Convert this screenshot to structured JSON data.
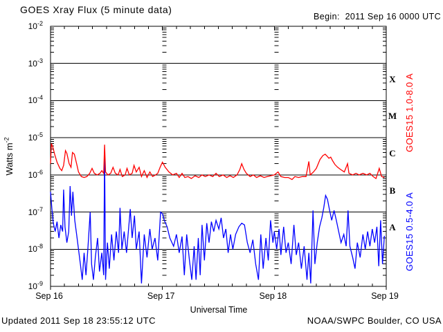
{
  "header": {
    "title": "GOES Xray Flux (5 minute data)",
    "begin_label": "Begin:",
    "begin_value": "2011 Sep 16 0000 UTC"
  },
  "footer": {
    "updated": "Updated 2011 Sep 18 23:55:12 UTC",
    "source": "NOAA/SWPC Boulder, CO USA"
  },
  "chart_data": {
    "type": "line",
    "title": "GOES Xray Flux (5 minute data)",
    "xlabel": "Universal Time",
    "ylabel_base": "Watts m",
    "ylabel_exp": "-2",
    "x_unit_hours_since": "2011 Sep 16 0000 UTC",
    "xlim_hours": [
      0,
      72
    ],
    "ylim": [
      1e-09,
      0.01
    ],
    "y_scale": "log",
    "grid": "horizontal-decade-lines",
    "x_minor_tick_hours": 3,
    "x_major_ticks": [
      {
        "hours": 0,
        "label": "Sep 16"
      },
      {
        "hours": 24,
        "label": "Sep 17"
      },
      {
        "hours": 48,
        "label": "Sep 18"
      },
      {
        "hours": 72,
        "label": "Sep 19"
      }
    ],
    "y_tick_exponents": [
      -2,
      -3,
      -4,
      -5,
      -6,
      -7,
      -8,
      -9
    ],
    "flare_classes": [
      {
        "label": "X",
        "log_center": -3.5
      },
      {
        "label": "M",
        "log_center": -4.5
      },
      {
        "label": "C",
        "log_center": -5.5
      },
      {
        "label": "B",
        "log_center": -6.5
      },
      {
        "label": "A",
        "log_center": -7.5
      }
    ],
    "series": [
      {
        "name": "GOES15 0.5-4.0 A",
        "color": "#0000ff",
        "points": [
          [
            0,
            3.5e-07
          ],
          [
            0.3,
            1.2e-07
          ],
          [
            0.6,
            5e-08
          ],
          [
            1,
            3e-08
          ],
          [
            1.4,
            5.5e-08
          ],
          [
            1.8,
            2e-08
          ],
          [
            2.2,
            4.5e-08
          ],
          [
            2.6,
            3e-08
          ],
          [
            2.8,
            4e-07
          ],
          [
            3.1,
            4e-08
          ],
          [
            3.5,
            1.5e-08
          ],
          [
            3.9,
            3e-08
          ],
          [
            4.2,
            5e-07
          ],
          [
            4.5,
            8e-08
          ],
          [
            4.8,
            3.5e-07
          ],
          [
            5.2,
            6e-08
          ],
          [
            5.6,
            2.5e-08
          ],
          [
            6,
            1e-08
          ],
          [
            6.4,
            4e-09
          ],
          [
            6.8,
            1.5e-09
          ],
          [
            7.2,
            8e-09
          ],
          [
            7.6,
            2e-09
          ],
          [
            8,
            1e-08
          ],
          [
            8.5,
            1e-07
          ],
          [
            8.8,
            4e-09
          ],
          [
            9.2,
            1.5e-09
          ],
          [
            9.6,
            6e-09
          ],
          [
            10.1,
            2e-08
          ],
          [
            10.5,
            2.5e-09
          ],
          [
            11,
            8e-09
          ],
          [
            11.4,
            2e-09
          ],
          [
            11.6,
            4e-06
          ],
          [
            11.8,
            1.5e-09
          ],
          [
            12.2,
            1.5e-08
          ],
          [
            12.6,
            3e-09
          ],
          [
            13.1,
            2.5e-08
          ],
          [
            13.6,
            5e-09
          ],
          [
            14.1,
            3e-08
          ],
          [
            14.6,
            8e-09
          ],
          [
            14.9,
            1.3e-07
          ],
          [
            15.3,
            1e-08
          ],
          [
            15.8,
            3e-08
          ],
          [
            16.3,
            8e-09
          ],
          [
            17.1,
            1.2e-07
          ],
          [
            17.5,
            2e-08
          ],
          [
            18,
            8e-08
          ],
          [
            18.4,
            1e-08
          ],
          [
            19,
            3e-08
          ],
          [
            19.5,
            1.2e-09
          ],
          [
            20.1,
            2.5e-08
          ],
          [
            20.7,
            6e-09
          ],
          [
            21.3,
            3.5e-08
          ],
          [
            21.8,
            1e-08
          ],
          [
            22.4,
            2e-08
          ],
          [
            23,
            5e-09
          ],
          [
            23.6,
            1e-07
          ],
          [
            24,
            9e-08
          ],
          [
            24.4,
            6e-08
          ],
          [
            25,
            4e-08
          ],
          [
            25.6,
            2e-08
          ],
          [
            26.4,
            1.2e-08
          ],
          [
            27,
            2.5e-08
          ],
          [
            27.6,
            8e-09
          ],
          [
            28.2,
            2.2e-08
          ],
          [
            28.7,
            2e-09
          ],
          [
            29.2,
            2.5e-08
          ],
          [
            29.8,
            5e-09
          ],
          [
            30.3,
            1.5e-09
          ],
          [
            30.8,
            1.2e-08
          ],
          [
            31.2,
            1.5e-09
          ],
          [
            31.7,
            2e-08
          ],
          [
            32.1,
            2e-09
          ],
          [
            32.5,
            4.5e-08
          ],
          [
            33,
            5e-09
          ],
          [
            33.5,
            5e-08
          ],
          [
            34,
            1.5e-08
          ],
          [
            34.5,
            5.5e-08
          ],
          [
            35,
            3e-08
          ],
          [
            35.5,
            6e-08
          ],
          [
            36.1,
            3.5e-08
          ],
          [
            36.6,
            7e-08
          ],
          [
            37.1,
            2e-08
          ],
          [
            37.6,
            3.5e-08
          ],
          [
            38.1,
            8e-09
          ],
          [
            38.6,
            2.5e-08
          ],
          [
            39.1,
            1e-08
          ],
          [
            39.7,
            2.5e-08
          ],
          [
            40.4,
            4e-08
          ],
          [
            41,
            5e-08
          ],
          [
            41.6,
            4.5e-08
          ],
          [
            42.2,
            1.5e-08
          ],
          [
            42.8,
            8e-09
          ],
          [
            43.4,
            1.8e-08
          ],
          [
            44,
            4e-09
          ],
          [
            44.6,
            1.5e-09
          ],
          [
            45.1,
            2.5e-08
          ],
          [
            45.6,
            3e-09
          ],
          [
            46.2,
            2e-08
          ],
          [
            46.7,
            5e-09
          ],
          [
            47.2,
            6e-08
          ],
          [
            47.7,
            1.5e-08
          ],
          [
            48,
            3e-08
          ],
          [
            48.5,
            1e-08
          ],
          [
            49,
            3.5e-08
          ],
          [
            49.4,
            7e-09
          ],
          [
            50,
            4e-08
          ],
          [
            50.5,
            8e-09
          ],
          [
            51,
            1.5e-08
          ],
          [
            51.6,
            4e-09
          ],
          [
            52.2,
            4.5e-08
          ],
          [
            52.7,
            7e-09
          ],
          [
            53.2,
            1.5e-08
          ],
          [
            53.8,
            3e-09
          ],
          [
            54.4,
            1.2e-08
          ],
          [
            55,
            1.5e-09
          ],
          [
            55.4,
            8e-09
          ],
          [
            55.8,
            1.2e-09
          ],
          [
            56.3,
            1.1e-07
          ],
          [
            56.7,
            4e-09
          ],
          [
            57.2,
            1.5e-08
          ],
          [
            57.7,
            4e-08
          ],
          [
            58.2,
            7e-08
          ],
          [
            58.6,
            1.3e-07
          ],
          [
            59,
            2.8e-07
          ],
          [
            59.4,
            2.2e-07
          ],
          [
            59.8,
            1.2e-07
          ],
          [
            60.3,
            6e-08
          ],
          [
            60.8,
            1.1e-07
          ],
          [
            61.3,
            6e-08
          ],
          [
            61.8,
            3e-08
          ],
          [
            62.3,
            1.5e-08
          ],
          [
            62.9,
            2.5e-08
          ],
          [
            63.4,
            1.2e-08
          ],
          [
            63.8,
            1.1e-07
          ],
          [
            64.2,
            1.2e-08
          ],
          [
            64.8,
            6e-09
          ],
          [
            65.3,
            3e-09
          ],
          [
            65.8,
            1.5e-08
          ],
          [
            66.4,
            6e-09
          ],
          [
            67,
            2.5e-08
          ],
          [
            67.5,
            1e-08
          ],
          [
            68,
            3e-08
          ],
          [
            68.5,
            1.2e-08
          ],
          [
            69,
            3.5e-08
          ],
          [
            69.5,
            1.5e-08
          ],
          [
            70,
            4e-08
          ],
          [
            70.4,
            3.5e-09
          ],
          [
            70.8,
            6e-08
          ],
          [
            71.2,
            4e-09
          ],
          [
            71.6,
            2.3e-08
          ]
        ]
      },
      {
        "name": "GOES15 1.0-8.0 A",
        "color": "#ff0000",
        "points": [
          [
            0,
            2e-06
          ],
          [
            0.2,
            7e-06
          ],
          [
            0.5,
            5.5e-06
          ],
          [
            0.9,
            3.5e-06
          ],
          [
            1.4,
            2.2e-06
          ],
          [
            2,
            1.5e-06
          ],
          [
            2.4,
            1.3e-06
          ],
          [
            2.8,
            1.8e-06
          ],
          [
            3.2,
            4.5e-06
          ],
          [
            3.5,
            3.8e-06
          ],
          [
            4,
            2e-06
          ],
          [
            4.4,
            1.6e-06
          ],
          [
            4.7,
            4e-06
          ],
          [
            5.1,
            3.6e-06
          ],
          [
            5.6,
            2e-06
          ],
          [
            6,
            1.2e-06
          ],
          [
            6.6,
            9e-07
          ],
          [
            7.2,
            8.5e-07
          ],
          [
            7.8,
            9e-07
          ],
          [
            8.4,
            1.1e-06
          ],
          [
            8.9,
            1.5e-06
          ],
          [
            9.4,
            1.1e-06
          ],
          [
            10,
            1e-06
          ],
          [
            10.6,
            1.1e-06
          ],
          [
            11,
            1.3e-06
          ],
          [
            11.4,
            1.1e-06
          ],
          [
            11.6,
            6.5e-06
          ],
          [
            11.8,
            1.2e-06
          ],
          [
            12.3,
            1e-06
          ],
          [
            12.9,
            1.1e-06
          ],
          [
            13.4,
            1.6e-06
          ],
          [
            13.9,
            1.1e-06
          ],
          [
            14.5,
            1e-06
          ],
          [
            14.9,
            1.4e-06
          ],
          [
            15.4,
            9e-07
          ],
          [
            16,
            1e-06
          ],
          [
            16.4,
            1.5e-06
          ],
          [
            16.9,
            1e-06
          ],
          [
            17.5,
            1.1e-06
          ],
          [
            17.9,
            1.8e-06
          ],
          [
            18.4,
            1.2e-06
          ],
          [
            19,
            1.6e-06
          ],
          [
            19.5,
            9e-07
          ],
          [
            20.1,
            1.3e-06
          ],
          [
            20.7,
            8.5e-07
          ],
          [
            21.3,
            1.2e-06
          ],
          [
            21.9,
            9e-07
          ],
          [
            22.5,
            1e-06
          ],
          [
            23,
            1.1e-06
          ],
          [
            23.5,
            1.6e-06
          ],
          [
            24,
            2.2e-06
          ],
          [
            24.6,
            1.6e-06
          ],
          [
            25.4,
            1.2e-06
          ],
          [
            26.2,
            1e-06
          ],
          [
            27,
            1.1e-06
          ],
          [
            27.6,
            8.5e-07
          ],
          [
            28.2,
            1.1e-06
          ],
          [
            28.8,
            8.5e-07
          ],
          [
            29.5,
            9e-07
          ],
          [
            30.2,
            8e-07
          ],
          [
            31,
            9.5e-07
          ],
          [
            31.8,
            8.5e-07
          ],
          [
            32.5,
            1e-06
          ],
          [
            33.2,
            9e-07
          ],
          [
            34,
            1e-06
          ],
          [
            34.8,
            9e-07
          ],
          [
            35.5,
            1.1e-06
          ],
          [
            36.2,
            9e-07
          ],
          [
            37,
            1e-06
          ],
          [
            37.8,
            8.5e-07
          ],
          [
            38.5,
            9.5e-07
          ],
          [
            39.2,
            8.5e-07
          ],
          [
            40,
            1e-06
          ],
          [
            40.6,
            1.4e-06
          ],
          [
            41,
            2e-06
          ],
          [
            41.5,
            1.4e-06
          ],
          [
            42,
            1.1e-06
          ],
          [
            42.8,
            9e-07
          ],
          [
            43.5,
            1e-06
          ],
          [
            44.2,
            8.5e-07
          ],
          [
            45,
            9.5e-07
          ],
          [
            45.8,
            8.5e-07
          ],
          [
            46.5,
            9e-07
          ],
          [
            47.2,
            9.5e-07
          ],
          [
            48,
            1e-06
          ],
          [
            48.8,
            1.2e-06
          ],
          [
            49.4,
            9e-07
          ],
          [
            50.2,
            8.5e-07
          ],
          [
            51,
            8.5e-07
          ],
          [
            51.8,
            7.5e-07
          ],
          [
            52.4,
            9e-07
          ],
          [
            53.2,
            8.5e-07
          ],
          [
            54,
            9e-07
          ],
          [
            54.8,
            9e-07
          ],
          [
            55.4,
            2.3e-06
          ],
          [
            55.7,
            1e-06
          ],
          [
            56.4,
            1.2e-06
          ],
          [
            57,
            1.5e-06
          ],
          [
            57.8,
            2.6e-06
          ],
          [
            58.4,
            3.3e-06
          ],
          [
            58.9,
            3.6e-06
          ],
          [
            59.3,
            3.2e-06
          ],
          [
            59.7,
            2.8e-06
          ],
          [
            60.1,
            3e-06
          ],
          [
            60.5,
            2.4e-06
          ],
          [
            61,
            1.9e-06
          ],
          [
            61.6,
            1.6e-06
          ],
          [
            62.2,
            1.4e-06
          ],
          [
            63,
            1.2e-06
          ],
          [
            63.7,
            2e-06
          ],
          [
            64,
            1.1e-06
          ],
          [
            64.8,
            1e-06
          ],
          [
            65.5,
            1.1e-06
          ],
          [
            66.2,
            1e-06
          ],
          [
            67,
            1.1e-06
          ],
          [
            67.8,
            1e-06
          ],
          [
            68.5,
            1.1e-06
          ],
          [
            69.2,
            9e-07
          ],
          [
            69.8,
            8e-07
          ],
          [
            70.5,
            1.5e-06
          ],
          [
            71,
            9e-07
          ],
          [
            71.6,
            8.5e-07
          ]
        ]
      }
    ]
  }
}
